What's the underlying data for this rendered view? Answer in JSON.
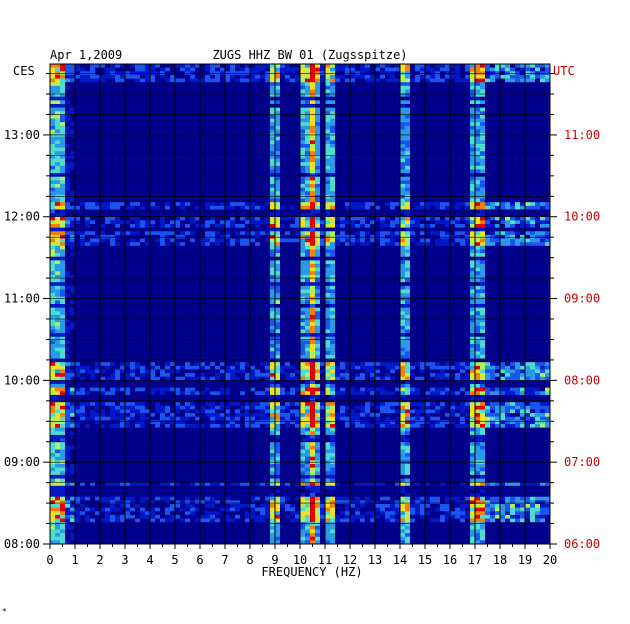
{
  "chart_data": {
    "type": "heatmap",
    "date_label": "Apr 1,2009",
    "title": "ZUGS HHZ BW 01 (Zugsspitze)",
    "left_timezone": "CES",
    "right_timezone": "UTC",
    "xlabel": "FREQUENCY (HZ)",
    "x_ticks": [
      "0",
      "1",
      "2",
      "3",
      "4",
      "5",
      "6",
      "7",
      "8",
      "9",
      "10",
      "11",
      "12",
      "13",
      "14",
      "15",
      "16",
      "17",
      "18",
      "19",
      "20"
    ],
    "xlim": [
      0,
      20
    ],
    "left_time_ticks": [
      "13:00",
      "12:00",
      "11:00",
      "10:00",
      "09:00",
      "08:00"
    ],
    "right_time_ticks": [
      "11:00",
      "10:00",
      "09:00",
      "08:00",
      "07:00",
      "06:00"
    ],
    "time_range_ces": [
      "08:00",
      "13:52"
    ],
    "grid": true,
    "colormap": [
      "#00008b",
      "#0018c8",
      "#1a55f0",
      "#2a9ae8",
      "#4cdcd0",
      "#b0f060",
      "#f0e020",
      "#f08010",
      "#e00000"
    ],
    "rows": 132,
    "freq_bins": 100,
    "spectral_lines_hz": [
      0.3,
      9.0,
      10.3,
      10.6,
      11.2,
      14.2,
      17.1
    ],
    "high_energy_periods_ces": [
      "08:15-08:45",
      "09:25-09:55",
      "10:00-10:15",
      "11:40-12:10",
      "13:40-13:52"
    ],
    "footer_mark": "*"
  }
}
